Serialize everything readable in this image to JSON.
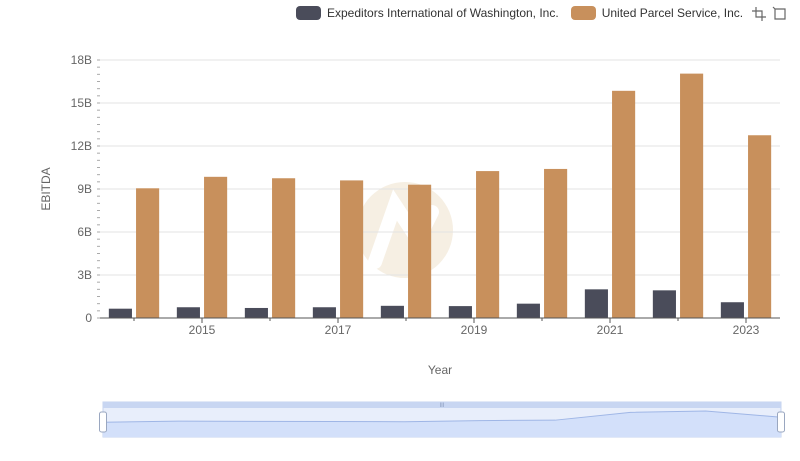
{
  "legend": {
    "items": [
      {
        "label": "Expeditors International of Washington, Inc.",
        "color": "#4a4c5a"
      },
      {
        "label": "United Parcel Service, Inc.",
        "color": "#c8905c"
      }
    ]
  },
  "toolbox": {
    "icons": [
      "zoom-icon",
      "zoom-reset-icon"
    ]
  },
  "chart_data": {
    "type": "bar",
    "xlabel": "Year",
    "ylabel": "EBITDA",
    "categories": [
      "2014",
      "2015",
      "2016",
      "2017",
      "2018",
      "2019",
      "2020",
      "2021",
      "2022",
      "2023"
    ],
    "x_tick_labels": [
      "2015",
      "2017",
      "2019",
      "2021",
      "2023"
    ],
    "y_tick_labels": [
      "0",
      "3B",
      "6B",
      "9B",
      "12B",
      "15B",
      "18B"
    ],
    "ylim": [
      0,
      18000000000
    ],
    "grid": true,
    "legend_position": "top",
    "series": [
      {
        "name": "Expeditors International of Washington, Inc.",
        "color": "#4a4c5a",
        "values": [
          650000000,
          750000000,
          700000000,
          750000000,
          850000000,
          830000000,
          1000000000,
          2000000000,
          1930000000,
          1100000000
        ]
      },
      {
        "name": "United Parcel Service, Inc.",
        "color": "#c8905c",
        "values": [
          9050000000,
          9850000000,
          9750000000,
          9600000000,
          9300000000,
          10250000000,
          10400000000,
          15850000000,
          17050000000,
          12750000000
        ]
      }
    ],
    "datazoom": {
      "handle_label": "III",
      "range_percent": [
        0,
        100
      ]
    }
  }
}
